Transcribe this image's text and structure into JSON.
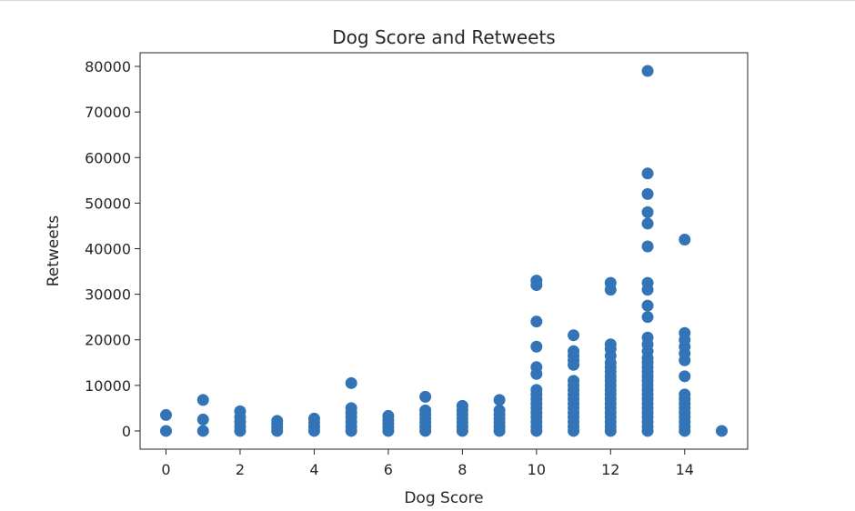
{
  "chart_data": {
    "type": "scatter",
    "title": "Dog Score and Retweets",
    "xlabel": "Dog Score",
    "ylabel": "Retweets",
    "xlim": [
      -0.7,
      15.7
    ],
    "ylim": [
      -4000,
      83000
    ],
    "x_ticks": [
      0,
      2,
      4,
      6,
      8,
      10,
      12,
      14
    ],
    "y_ticks": [
      0,
      10000,
      20000,
      30000,
      40000,
      50000,
      60000,
      70000,
      80000
    ],
    "marker_color": "#3274b5",
    "grid": false,
    "series": [
      {
        "points": [
          [
            0,
            0
          ],
          [
            0,
            3500
          ],
          [
            1,
            0
          ],
          [
            1,
            2500
          ],
          [
            1,
            6800
          ],
          [
            2,
            0
          ],
          [
            2,
            1000
          ],
          [
            2,
            2000
          ],
          [
            2,
            3000
          ],
          [
            2,
            4300
          ],
          [
            3,
            0
          ],
          [
            3,
            800
          ],
          [
            3,
            1500
          ],
          [
            3,
            2200
          ],
          [
            4,
            0
          ],
          [
            4,
            900
          ],
          [
            4,
            1800
          ],
          [
            4,
            2700
          ],
          [
            5,
            0
          ],
          [
            5,
            1000
          ],
          [
            5,
            2000
          ],
          [
            5,
            3000
          ],
          [
            5,
            4000
          ],
          [
            5,
            5000
          ],
          [
            5,
            10500
          ],
          [
            6,
            0
          ],
          [
            6,
            800
          ],
          [
            6,
            1600
          ],
          [
            6,
            2400
          ],
          [
            6,
            3300
          ],
          [
            7,
            0
          ],
          [
            7,
            900
          ],
          [
            7,
            1800
          ],
          [
            7,
            2700
          ],
          [
            7,
            3600
          ],
          [
            7,
            4500
          ],
          [
            7,
            7500
          ],
          [
            8,
            0
          ],
          [
            8,
            900
          ],
          [
            8,
            1800
          ],
          [
            8,
            2700
          ],
          [
            8,
            3600
          ],
          [
            8,
            4500
          ],
          [
            8,
            5500
          ],
          [
            9,
            0
          ],
          [
            9,
            900
          ],
          [
            9,
            1800
          ],
          [
            9,
            2700
          ],
          [
            9,
            3600
          ],
          [
            9,
            4500
          ],
          [
            9,
            6800
          ],
          [
            10,
            0
          ],
          [
            10,
            1000
          ],
          [
            10,
            2000
          ],
          [
            10,
            3000
          ],
          [
            10,
            4000
          ],
          [
            10,
            5000
          ],
          [
            10,
            6000
          ],
          [
            10,
            7000
          ],
          [
            10,
            8000
          ],
          [
            10,
            9000
          ],
          [
            10,
            12500
          ],
          [
            10,
            14000
          ],
          [
            10,
            18500
          ],
          [
            10,
            24000
          ],
          [
            10,
            32000
          ],
          [
            10,
            33000
          ],
          [
            11,
            0
          ],
          [
            11,
            1000
          ],
          [
            11,
            2000
          ],
          [
            11,
            3000
          ],
          [
            11,
            4000
          ],
          [
            11,
            5000
          ],
          [
            11,
            6000
          ],
          [
            11,
            7000
          ],
          [
            11,
            8000
          ],
          [
            11,
            9000
          ],
          [
            11,
            10000
          ],
          [
            11,
            11000
          ],
          [
            11,
            14500
          ],
          [
            11,
            15500
          ],
          [
            11,
            16500
          ],
          [
            11,
            17500
          ],
          [
            11,
            21000
          ],
          [
            12,
            0
          ],
          [
            12,
            1000
          ],
          [
            12,
            2000
          ],
          [
            12,
            3000
          ],
          [
            12,
            4000
          ],
          [
            12,
            5000
          ],
          [
            12,
            6000
          ],
          [
            12,
            7000
          ],
          [
            12,
            8000
          ],
          [
            12,
            9000
          ],
          [
            12,
            10000
          ],
          [
            12,
            11000
          ],
          [
            12,
            12000
          ],
          [
            12,
            13000
          ],
          [
            12,
            14000
          ],
          [
            12,
            15000
          ],
          [
            12,
            16500
          ],
          [
            12,
            18000
          ],
          [
            12,
            19000
          ],
          [
            12,
            31000
          ],
          [
            12,
            32500
          ],
          [
            13,
            0
          ],
          [
            13,
            1000
          ],
          [
            13,
            2000
          ],
          [
            13,
            3000
          ],
          [
            13,
            4000
          ],
          [
            13,
            5000
          ],
          [
            13,
            6000
          ],
          [
            13,
            7000
          ],
          [
            13,
            8000
          ],
          [
            13,
            9000
          ],
          [
            13,
            10000
          ],
          [
            13,
            11000
          ],
          [
            13,
            12000
          ],
          [
            13,
            13000
          ],
          [
            13,
            14000
          ],
          [
            13,
            15000
          ],
          [
            13,
            16000
          ],
          [
            13,
            17500
          ],
          [
            13,
            19000
          ],
          [
            13,
            20500
          ],
          [
            13,
            25000
          ],
          [
            13,
            27500
          ],
          [
            13,
            31000
          ],
          [
            13,
            32500
          ],
          [
            13,
            40500
          ],
          [
            13,
            45500
          ],
          [
            13,
            48000
          ],
          [
            13,
            52000
          ],
          [
            13,
            56500
          ],
          [
            13,
            79000
          ],
          [
            14,
            0
          ],
          [
            14,
            1000
          ],
          [
            14,
            2000
          ],
          [
            14,
            3000
          ],
          [
            14,
            4000
          ],
          [
            14,
            5000
          ],
          [
            14,
            6000
          ],
          [
            14,
            7000
          ],
          [
            14,
            8000
          ],
          [
            14,
            12000
          ],
          [
            14,
            15500
          ],
          [
            14,
            17000
          ],
          [
            14,
            18500
          ],
          [
            14,
            20000
          ],
          [
            14,
            21500
          ],
          [
            14,
            42000
          ],
          [
            15,
            0
          ]
        ]
      }
    ]
  }
}
